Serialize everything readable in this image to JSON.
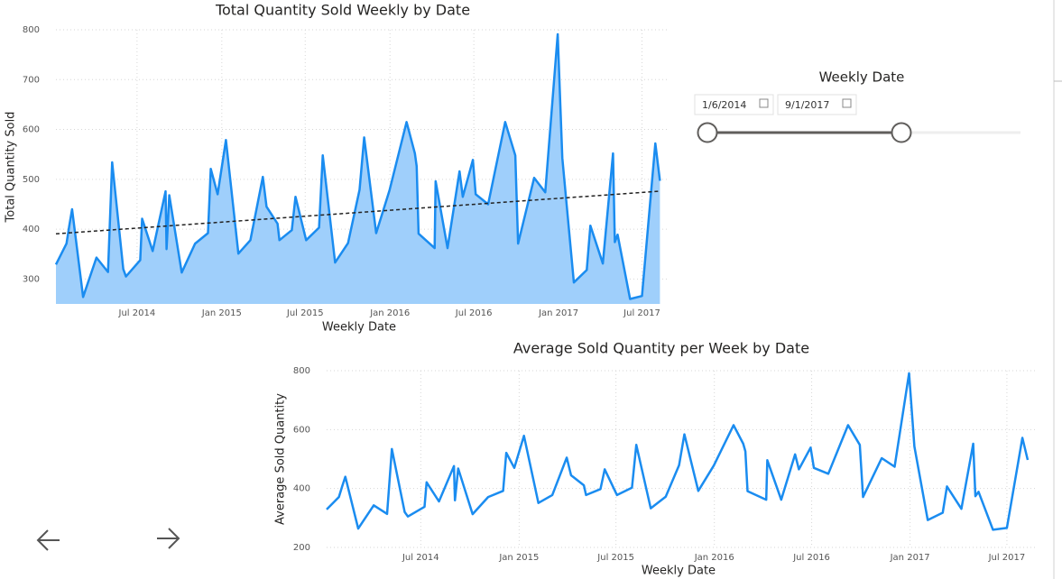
{
  "chart_data": [
    {
      "type": "area",
      "title": "Total Quantity Sold Weekly by Date",
      "xlabel": "Weekly Date",
      "ylabel": "Total Quantity Sold",
      "x": [
        "2014-01-06",
        "2014-01-29",
        "2014-02-04",
        "2014-02-10",
        "2014-03-06",
        "2014-04-04",
        "2014-04-29",
        "2014-05-08",
        "2014-06-01",
        "2014-06-07",
        "2014-07-08",
        "2014-07-12",
        "2014-08-04",
        "2014-09-01",
        "2014-09-03",
        "2014-09-09",
        "2014-10-06",
        "2014-11-04",
        "2014-12-02",
        "2014-12-08",
        "2014-12-23",
        "2015-01-10",
        "2015-02-06",
        "2015-03-04",
        "2015-03-31",
        "2015-04-08",
        "2015-05-02",
        "2015-05-06",
        "2015-06-02",
        "2015-06-10",
        "2015-07-03",
        "2015-07-31",
        "2015-08-08",
        "2015-09-04",
        "2015-10-02",
        "2015-10-27",
        "2015-11-06",
        "2015-12-02",
        "2015-12-31",
        "2016-02-06",
        "2016-02-24",
        "2016-02-28",
        "2016-03-03",
        "2016-04-07",
        "2016-04-09",
        "2016-05-05",
        "2016-05-31",
        "2016-06-07",
        "2016-06-29",
        "2016-07-05",
        "2016-08-01",
        "2016-09-07",
        "2016-09-29",
        "2016-10-05",
        "2016-11-09",
        "2016-12-03",
        "2016-12-30",
        "2017-01-09",
        "2017-02-03",
        "2017-03-03",
        "2017-03-11",
        "2017-04-07",
        "2017-04-29",
        "2017-05-03",
        "2017-05-09",
        "2017-06-05",
        "2017-07-01",
        "2017-07-30",
        "2017-08-09"
      ],
      "values": [
        329,
        371,
        407,
        440,
        264,
        343,
        314,
        534,
        320,
        305,
        338,
        421,
        356,
        476,
        360,
        468,
        313,
        371,
        392,
        521,
        470,
        579,
        351,
        378,
        505,
        445,
        411,
        378,
        398,
        465,
        378,
        403,
        548,
        333,
        372,
        479,
        584,
        392,
        478,
        615,
        552,
        526,
        391,
        362,
        496,
        362,
        516,
        465,
        539,
        470,
        450,
        615,
        548,
        371,
        503,
        474,
        791,
        543,
        293,
        318,
        407,
        331,
        552,
        374,
        389,
        260,
        266,
        572,
        497
      ],
      "color": "#1a8cf0",
      "fill": "#9fcffb",
      "trendline": true,
      "trendline_color": "#222222",
      "xlim": [
        "2014-01-06",
        "2017-08-14"
      ],
      "xticks": [
        {
          "value": "2014-07-01",
          "label": "Jul 2014"
        },
        {
          "value": "2015-01-01",
          "label": "Jan 2015"
        },
        {
          "value": "2015-07-01",
          "label": "Jul 2015"
        },
        {
          "value": "2016-01-01",
          "label": "Jan 2016"
        },
        {
          "value": "2016-07-01",
          "label": "Jul 2016"
        },
        {
          "value": "2017-01-01",
          "label": "Jan 2017"
        },
        {
          "value": "2017-07-01",
          "label": "Jul 2017"
        }
      ],
      "ylim": [
        250,
        800
      ],
      "yticks": [
        300,
        400,
        500,
        600,
        700,
        800
      ],
      "grid": true
    },
    {
      "type": "line",
      "title": "Average Sold Quantity per Week by Date",
      "xlabel": "Weekly Date",
      "ylabel": "Average Sold Quantity",
      "x": [
        "2014-01-06",
        "2014-01-29",
        "2014-02-04",
        "2014-02-10",
        "2014-03-06",
        "2014-04-04",
        "2014-04-29",
        "2014-05-08",
        "2014-06-01",
        "2014-06-07",
        "2014-07-08",
        "2014-07-12",
        "2014-08-04",
        "2014-09-01",
        "2014-09-03",
        "2014-09-09",
        "2014-10-06",
        "2014-11-04",
        "2014-12-02",
        "2014-12-08",
        "2014-12-23",
        "2015-01-10",
        "2015-02-06",
        "2015-03-04",
        "2015-03-31",
        "2015-04-08",
        "2015-05-02",
        "2015-05-06",
        "2015-06-02",
        "2015-06-10",
        "2015-07-03",
        "2015-07-31",
        "2015-08-08",
        "2015-09-04",
        "2015-10-02",
        "2015-10-27",
        "2015-11-06",
        "2015-12-02",
        "2015-12-31",
        "2016-02-06",
        "2016-02-24",
        "2016-02-28",
        "2016-03-03",
        "2016-04-07",
        "2016-04-09",
        "2016-05-05",
        "2016-05-31",
        "2016-06-07",
        "2016-06-29",
        "2016-07-05",
        "2016-08-01",
        "2016-09-07",
        "2016-09-29",
        "2016-10-05",
        "2016-11-09",
        "2016-12-03",
        "2016-12-30",
        "2017-01-09",
        "2017-02-03",
        "2017-03-03",
        "2017-03-11",
        "2017-04-07",
        "2017-04-29",
        "2017-05-03",
        "2017-05-09",
        "2017-06-05",
        "2017-07-01",
        "2017-07-30",
        "2017-08-09"
      ],
      "values": [
        329,
        371,
        407,
        440,
        264,
        343,
        314,
        534,
        320,
        305,
        338,
        421,
        356,
        476,
        360,
        468,
        313,
        371,
        392,
        521,
        470,
        579,
        351,
        378,
        505,
        445,
        411,
        378,
        398,
        465,
        378,
        403,
        548,
        333,
        372,
        479,
        584,
        392,
        478,
        615,
        552,
        526,
        391,
        362,
        496,
        362,
        516,
        465,
        539,
        470,
        450,
        615,
        548,
        371,
        503,
        474,
        791,
        543,
        293,
        318,
        407,
        331,
        552,
        374,
        389,
        260,
        266,
        572,
        497
      ],
      "color": "#1a8cf0",
      "xlim": [
        "2014-01-06",
        "2017-08-14"
      ],
      "xticks": [
        {
          "value": "2014-07-01",
          "label": "Jul 2014"
        },
        {
          "value": "2015-01-01",
          "label": "Jan 2015"
        },
        {
          "value": "2015-07-01",
          "label": "Jul 2015"
        },
        {
          "value": "2016-01-01",
          "label": "Jan 2016"
        },
        {
          "value": "2016-07-01",
          "label": "Jul 2016"
        },
        {
          "value": "2017-01-01",
          "label": "Jan 2017"
        },
        {
          "value": "2017-07-01",
          "label": "Jul 2017"
        }
      ],
      "ylim": [
        200,
        800
      ],
      "yticks": [
        200,
        400,
        600,
        800
      ],
      "grid": true
    }
  ],
  "slicer": {
    "title": "Weekly Date",
    "start": "1/6/2014",
    "end": "9/1/2017"
  }
}
